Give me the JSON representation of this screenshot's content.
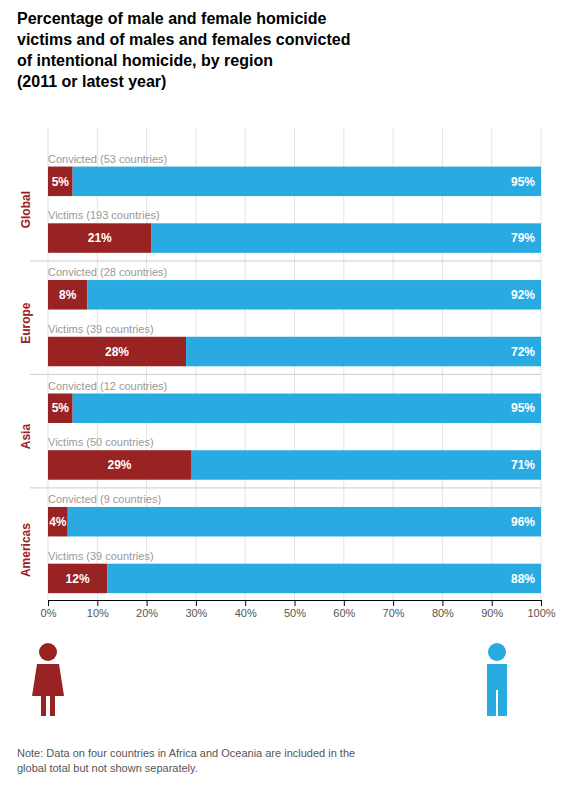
{
  "chart_data": {
    "type": "bar",
    "orientation": "horizontal",
    "stacked": true,
    "data_labels": true,
    "grid": true,
    "title": "Percentage of male and female homicide\nvictims and of males and females convicted\nof intentional homicide, by region\n(2011 or latest year)",
    "categories": [
      "Convicted (53 countries)",
      "Victims (193 countries)",
      "Convicted (28 countries)",
      "Victims (39 countries)",
      "Convicted (12 countries)",
      "Victims (50 countries)",
      "Convicted (9 countries)",
      "Victims (39 countries)"
    ],
    "regions": [
      "Global",
      "Global",
      "Europe",
      "Europe",
      "Asia",
      "Asia",
      "Americas",
      "Americas"
    ],
    "series": [
      {
        "color": "#992222",
        "values": [
          5,
          21,
          8,
          28,
          5,
          29,
          4,
          12
        ],
        "value_labels": [
          "5%",
          "21%",
          "8%",
          "28%",
          "5%",
          "29%",
          "4%",
          "12%"
        ]
      },
      {
        "color": "#29abe2",
        "values": [
          95,
          79,
          92,
          72,
          95,
          71,
          96,
          88
        ],
        "value_labels": [
          "95%",
          "79%",
          "92%",
          "72%",
          "95%",
          "71%",
          "96%",
          "88%"
        ]
      }
    ],
    "xlim": [
      0,
      100
    ],
    "xticks": [
      {
        "value": 0,
        "label": "0%"
      },
      {
        "value": 10,
        "label": "10%"
      },
      {
        "value": 20,
        "label": "20%"
      },
      {
        "value": 30,
        "label": "30%"
      },
      {
        "value": 40,
        "label": "40%"
      },
      {
        "value": 50,
        "label": "50%"
      },
      {
        "value": 60,
        "label": "60%"
      },
      {
        "value": 70,
        "label": "70%"
      },
      {
        "value": 80,
        "label": "80%"
      },
      {
        "value": 90,
        "label": "90%"
      },
      {
        "value": 100,
        "label": "100%"
      }
    ],
    "note": "Note: Data on four countries in Africa and Oceania are included in the\nglobal total but not shown separately."
  }
}
